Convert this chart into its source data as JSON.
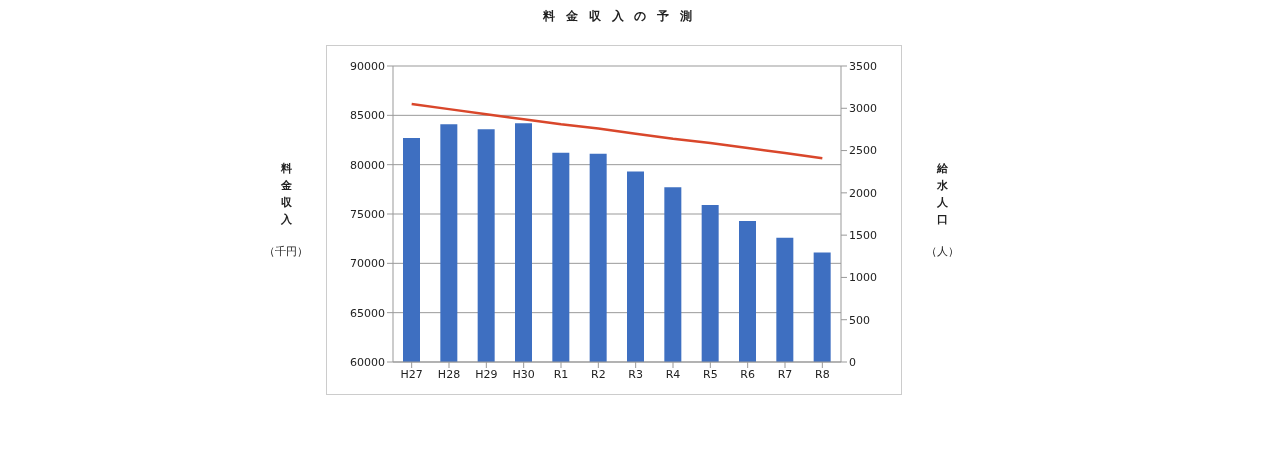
{
  "chart_data": {
    "type": "bar",
    "title": "料金収入の予測",
    "ylabel": "料金収入（千円）",
    "y2label": "給水人口（人）",
    "categories": [
      "H27",
      "H28",
      "H29",
      "H30",
      "R1",
      "R2",
      "R3",
      "R4",
      "R5",
      "R6",
      "R7",
      "R8"
    ],
    "series": [
      {
        "color": "#3e6fc1",
        "values": [
          82700,
          84100,
          83600,
          84200,
          81200,
          81100,
          79300,
          77700,
          75900,
          74300,
          72600,
          71100
        ]
      },
      {
        "type": "line",
        "axis": "y2",
        "color": "#d9472b",
        "values": [
          3050,
          2990,
          2930,
          2870,
          2810,
          2760,
          2700,
          2640,
          2590,
          2530,
          2470,
          2410
        ]
      }
    ],
    "ylim": [
      60000,
      90000
    ],
    "yticks": [
      60000,
      65000,
      70000,
      75000,
      80000,
      85000,
      90000
    ],
    "y2lim": [
      0,
      3500
    ],
    "y2ticks": [
      0,
      500,
      1000,
      1500,
      2000,
      2500,
      3000,
      3500
    ],
    "grid": "y",
    "legend": false,
    "marker": "none",
    "line_style": "solid"
  }
}
